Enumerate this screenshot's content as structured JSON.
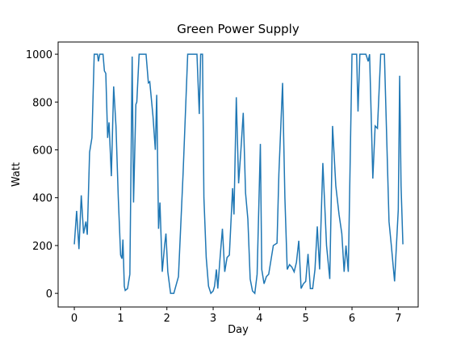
{
  "chart_data": {
    "type": "line",
    "title": "Green Power Supply",
    "x_label": "Day",
    "y_label": "Watt",
    "xlim": [
      -0.35,
      7.43
    ],
    "ylim": [
      -57,
      1051
    ],
    "xticks": [
      0,
      1,
      2,
      3,
      4,
      5,
      6,
      7
    ],
    "yticks": [
      0,
      200,
      400,
      600,
      800,
      1000
    ],
    "series": [
      {
        "name": "Green Power Supply",
        "color": "#1f77b4",
        "x": [
          0,
          0.05,
          0.1,
          0.15,
          0.2,
          0.25,
          0.28,
          0.33,
          0.38,
          0.43,
          0.5,
          0.52,
          0.55,
          0.62,
          0.65,
          0.68,
          0.72,
          0.75,
          0.8,
          0.85,
          0.9,
          0.95,
          1.0,
          1.03,
          1.05,
          1.08,
          1.1,
          1.15,
          1.2,
          1.25,
          1.28,
          1.33,
          1.35,
          1.4,
          1.55,
          1.6,
          1.63,
          1.7,
          1.75,
          1.78,
          1.82,
          1.85,
          1.9,
          1.95,
          1.98,
          2.02,
          2.08,
          2.15,
          2.25,
          2.35,
          2.45,
          2.65,
          2.7,
          2.73,
          2.77,
          2.8,
          2.85,
          2.9,
          2.95,
          3.0,
          3.03,
          3.07,
          3.1,
          3.15,
          3.2,
          3.25,
          3.3,
          3.35,
          3.42,
          3.45,
          3.5,
          3.55,
          3.6,
          3.65,
          3.7,
          3.75,
          3.8,
          3.85,
          3.9,
          3.95,
          4.02,
          4.05,
          4.1,
          4.15,
          4.2,
          4.3,
          4.38,
          4.42,
          4.5,
          4.55,
          4.6,
          4.65,
          4.7,
          4.75,
          4.8,
          4.85,
          4.9,
          4.95,
          5.0,
          5.05,
          5.1,
          5.15,
          5.2,
          5.25,
          5.3,
          5.37,
          5.45,
          5.52,
          5.58,
          5.65,
          5.72,
          5.78,
          5.83,
          5.87,
          5.92,
          6.0,
          6.1,
          6.13,
          6.17,
          6.3,
          6.35,
          6.38,
          6.45,
          6.5,
          6.55,
          6.62,
          6.7,
          6.8,
          6.85,
          6.92,
          7.0,
          7.03,
          7.06,
          7.1
        ],
        "values": [
          205,
          345,
          185,
          410,
          250,
          300,
          245,
          590,
          650,
          1000,
          1000,
          970,
          1000,
          1000,
          930,
          920,
          650,
          715,
          490,
          865,
          700,
          400,
          160,
          145,
          225,
          30,
          12,
          20,
          80,
          990,
          380,
          790,
          800,
          1000,
          1000,
          880,
          885,
          740,
          600,
          830,
          270,
          380,
          90,
          200,
          250,
          90,
          0,
          0,
          70,
          500,
          1000,
          1000,
          750,
          1000,
          1000,
          400,
          150,
          30,
          0,
          10,
          30,
          100,
          20,
          150,
          270,
          90,
          150,
          160,
          440,
          330,
          820,
          460,
          600,
          755,
          420,
          310,
          60,
          10,
          0,
          80,
          625,
          100,
          40,
          70,
          80,
          200,
          210,
          500,
          880,
          400,
          100,
          120,
          110,
          90,
          130,
          220,
          20,
          40,
          50,
          165,
          20,
          20,
          100,
          280,
          100,
          545,
          200,
          60,
          700,
          450,
          330,
          250,
          90,
          200,
          90,
          1000,
          1000,
          760,
          1000,
          1000,
          970,
          1000,
          480,
          700,
          690,
          1000,
          1000,
          300,
          200,
          50,
          350,
          910,
          450,
          205
        ]
      }
    ]
  }
}
